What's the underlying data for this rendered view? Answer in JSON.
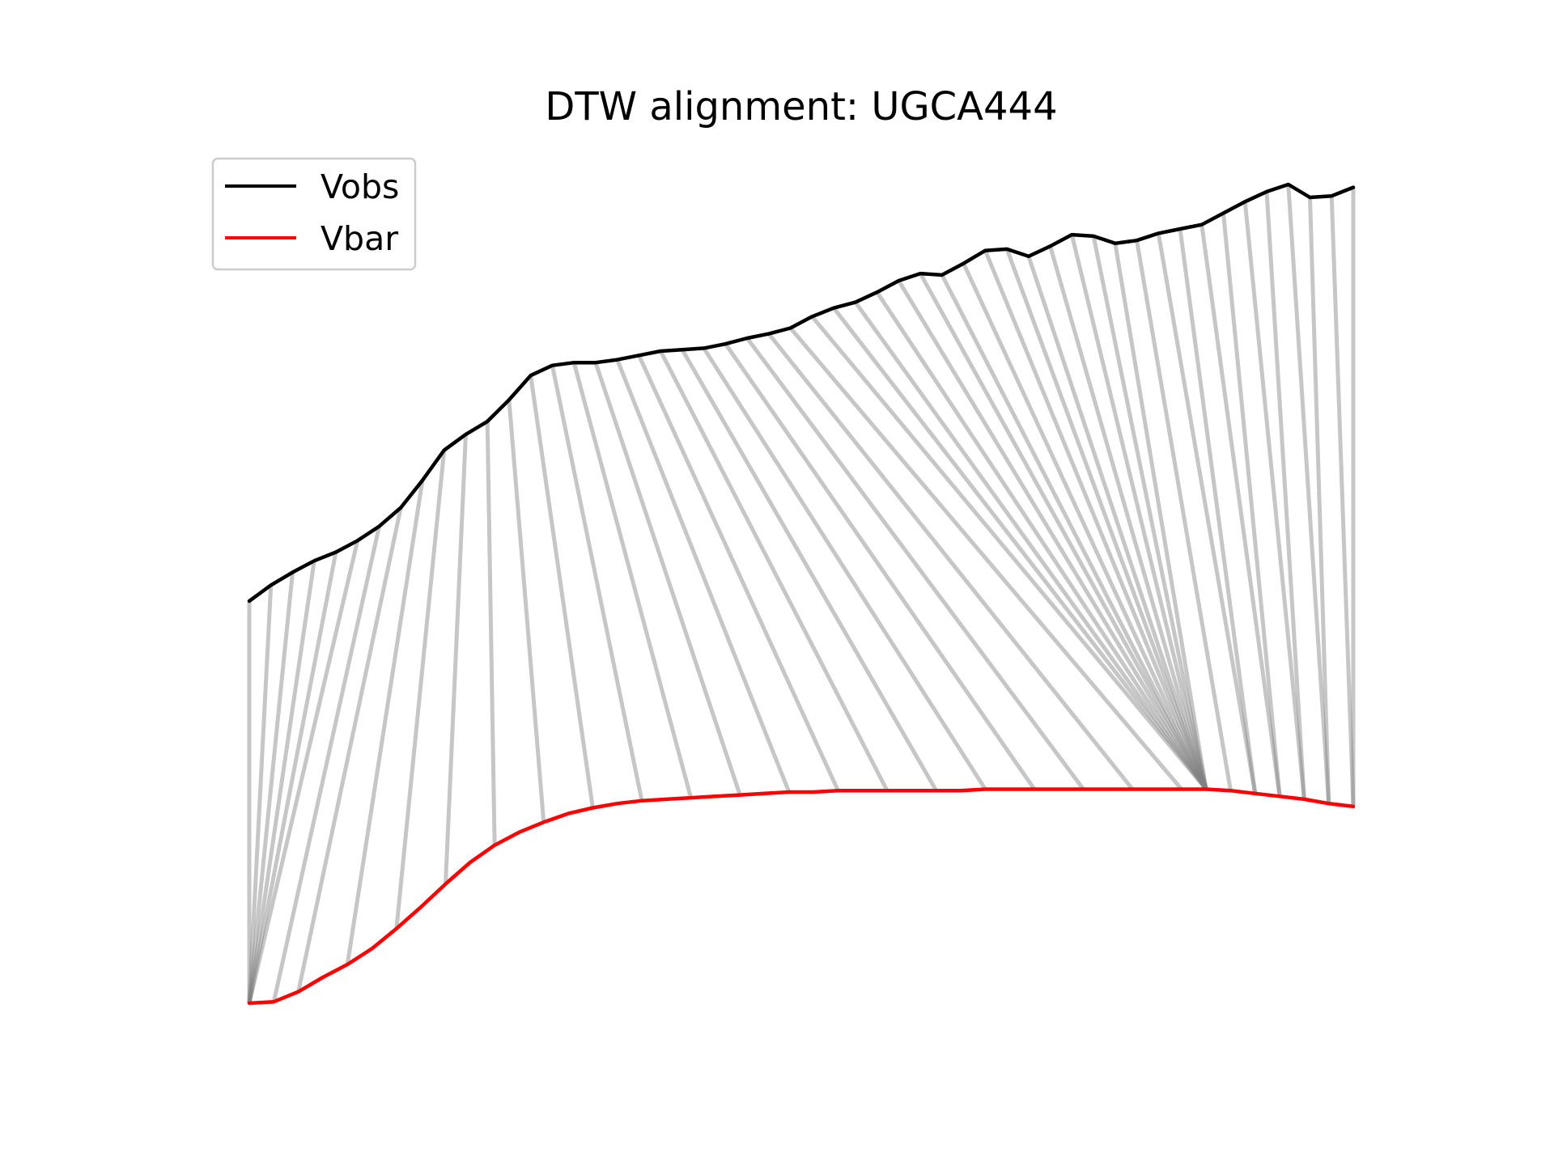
{
  "chart_data": {
    "type": "line",
    "title": "DTW alignment: UGCA444",
    "xlabel": "",
    "ylabel": "",
    "axes_visible": false,
    "grid": false,
    "legend_placement": "top-left",
    "connector_color": "#808080",
    "series": [
      {
        "name": "Vobs",
        "color": "#000000",
        "values": [
          -0.3,
          -0.19,
          -0.1,
          -0.02,
          0.04,
          0.12,
          0.22,
          0.35,
          0.54,
          0.75,
          0.86,
          0.95,
          1.1,
          1.27,
          1.34,
          1.36,
          1.36,
          1.38,
          1.41,
          1.44,
          1.45,
          1.46,
          1.49,
          1.53,
          1.56,
          1.6,
          1.68,
          1.74,
          1.78,
          1.85,
          1.93,
          1.98,
          1.97,
          2.05,
          2.14,
          2.15,
          2.1,
          2.17,
          2.25,
          2.24,
          2.19,
          2.21,
          2.26,
          2.29,
          2.32,
          2.4,
          2.48,
          2.55,
          2.6,
          2.51,
          2.52,
          2.58
        ]
      },
      {
        "name": "Vbar",
        "color": "#ff0000",
        "values": [
          -3.1,
          -3.09,
          -3.02,
          -2.92,
          -2.83,
          -2.72,
          -2.58,
          -2.43,
          -2.27,
          -2.12,
          -2.0,
          -1.91,
          -1.84,
          -1.78,
          -1.74,
          -1.71,
          -1.69,
          -1.68,
          -1.67,
          -1.66,
          -1.65,
          -1.64,
          -1.63,
          -1.63,
          -1.62,
          -1.62,
          -1.62,
          -1.62,
          -1.62,
          -1.62,
          -1.61,
          -1.61,
          -1.61,
          -1.61,
          -1.61,
          -1.61,
          -1.61,
          -1.61,
          -1.61,
          -1.61,
          -1.62,
          -1.64,
          -1.66,
          -1.68,
          -1.71,
          -1.73
        ]
      }
    ],
    "alignment_path": [
      [
        0,
        0
      ],
      [
        1,
        0
      ],
      [
        2,
        0
      ],
      [
        3,
        0
      ],
      [
        4,
        0
      ],
      [
        5,
        0
      ],
      [
        6,
        1
      ],
      [
        7,
        2
      ],
      [
        8,
        4
      ],
      [
        9,
        6
      ],
      [
        10,
        8
      ],
      [
        11,
        10
      ],
      [
        12,
        12
      ],
      [
        13,
        14
      ],
      [
        14,
        16
      ],
      [
        15,
        18
      ],
      [
        16,
        20
      ],
      [
        17,
        22
      ],
      [
        18,
        24
      ],
      [
        19,
        26
      ],
      [
        20,
        28
      ],
      [
        21,
        30
      ],
      [
        22,
        32
      ],
      [
        23,
        34
      ],
      [
        24,
        36
      ],
      [
        25,
        38
      ],
      [
        26,
        39
      ],
      [
        27,
        39
      ],
      [
        28,
        39
      ],
      [
        29,
        39
      ],
      [
        30,
        39
      ],
      [
        31,
        39
      ],
      [
        32,
        39
      ],
      [
        33,
        39
      ],
      [
        34,
        39
      ],
      [
        35,
        39
      ],
      [
        36,
        39
      ],
      [
        37,
        39
      ],
      [
        38,
        39
      ],
      [
        39,
        39
      ],
      [
        40,
        39
      ],
      [
        41,
        40
      ],
      [
        42,
        41
      ],
      [
        43,
        41
      ],
      [
        44,
        42
      ],
      [
        45,
        42
      ],
      [
        46,
        43
      ],
      [
        47,
        43
      ],
      [
        48,
        44
      ],
      [
        49,
        44
      ],
      [
        50,
        45
      ],
      [
        51,
        45
      ]
    ]
  },
  "legend": {
    "items": [
      {
        "label": "Vobs",
        "color": "#000000"
      },
      {
        "label": "Vbar",
        "color": "#ff0000"
      }
    ]
  }
}
